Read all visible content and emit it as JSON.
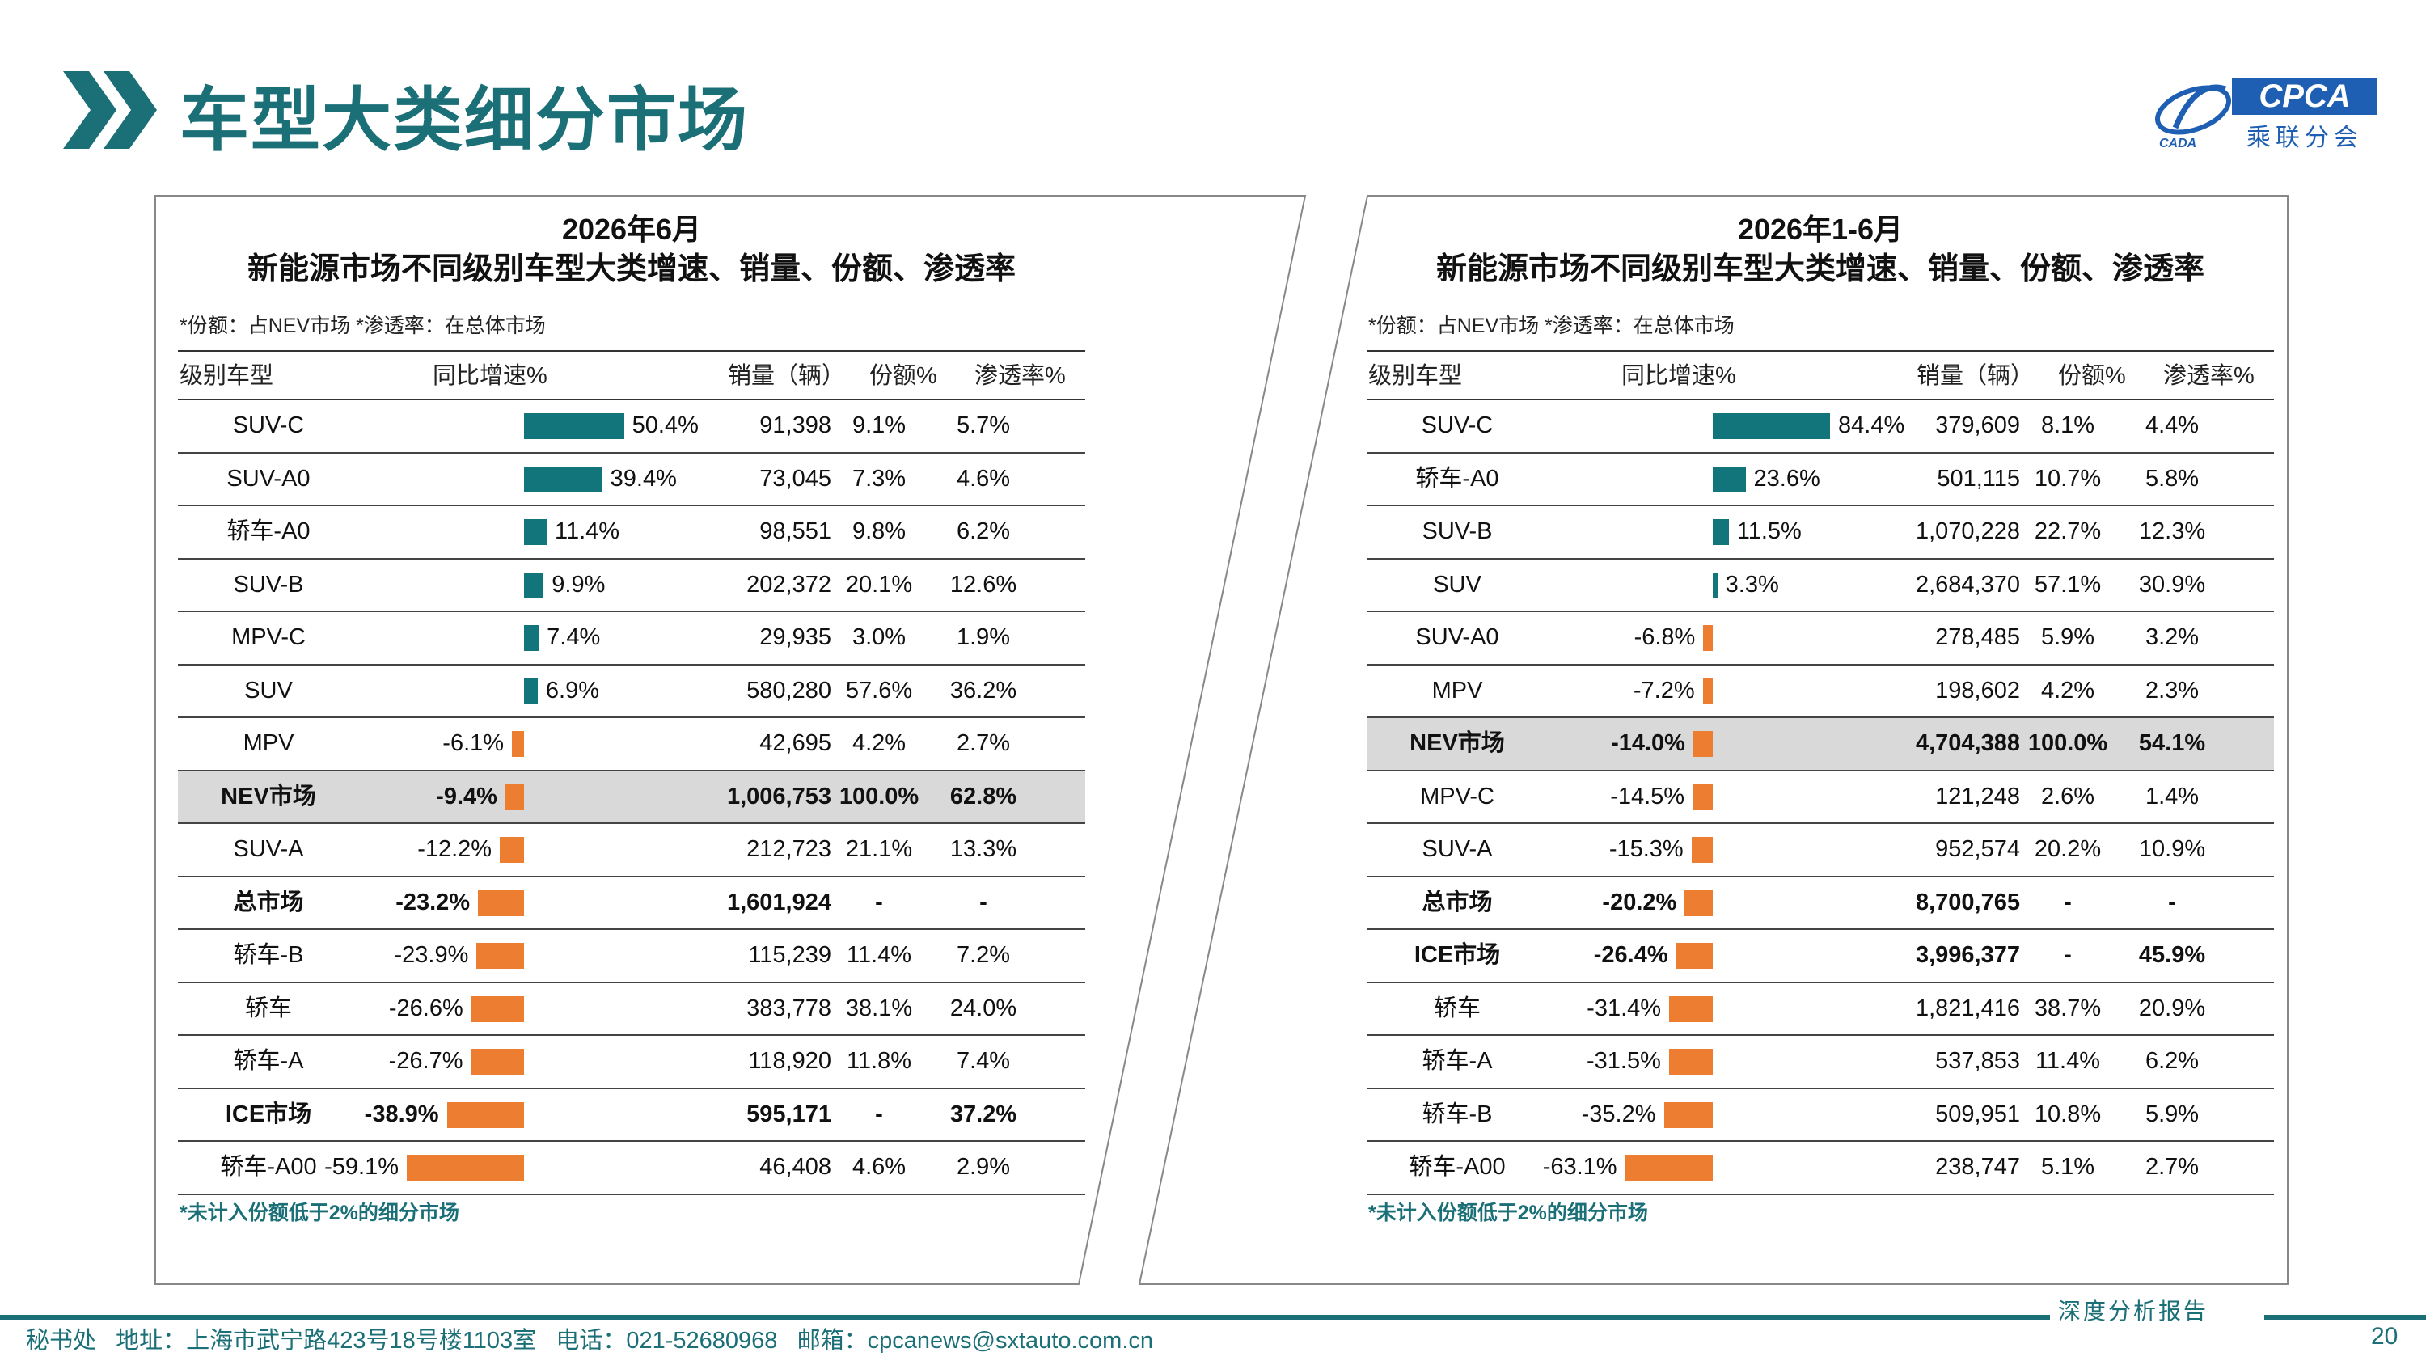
{
  "page": {
    "title": "车型大类细分市场",
    "page_number": "20"
  },
  "logo": {
    "name": "CPCA",
    "caption": "乘联分会",
    "sub": "CADA"
  },
  "footer": {
    "report_label": "深度分析报告",
    "info": "秘书处   地址：上海市武宁路423号18号楼1103室   电话：021-52680968   邮箱：cpcanews@sxtauto.com.cn"
  },
  "colors": {
    "teal": "#1b6f77",
    "positive_bar": "#13757c",
    "negative_bar": "#ed7d31",
    "highlight_row": "#d9d9d9"
  },
  "chart_data": [
    {
      "type": "table",
      "title": "2026年6月",
      "subtitle": "新能源市场不同级别车型大类增速、销量、份额、渗透率",
      "note": "*份额：占NEV市场   *渗透率：在总体市场",
      "footnote": "*未计入份额低于2%的细分市场",
      "headers": {
        "type": "级别车型",
        "growth": "同比增速%",
        "sales": "销量（辆）",
        "share": "份额%",
        "penetration": "渗透率%"
      },
      "rows": [
        {
          "type": "SUV-C",
          "growth": 50.4,
          "growth_label": "50.4%",
          "sales": "91,398",
          "share": "9.1%",
          "penetration": "5.7%"
        },
        {
          "type": "SUV-A0",
          "growth": 39.4,
          "growth_label": "39.4%",
          "sales": "73,045",
          "share": "7.3%",
          "penetration": "4.6%"
        },
        {
          "type": "轿车-A0",
          "growth": 11.4,
          "growth_label": "11.4%",
          "sales": "98,551",
          "share": "9.8%",
          "penetration": "6.2%"
        },
        {
          "type": "SUV-B",
          "growth": 9.9,
          "growth_label": "9.9%",
          "sales": "202,372",
          "share": "20.1%",
          "penetration": "12.6%"
        },
        {
          "type": "MPV-C",
          "growth": 7.4,
          "growth_label": "7.4%",
          "sales": "29,935",
          "share": "3.0%",
          "penetration": "1.9%"
        },
        {
          "type": "SUV",
          "growth": 6.9,
          "growth_label": "6.9%",
          "sales": "580,280",
          "share": "57.6%",
          "penetration": "36.2%"
        },
        {
          "type": "MPV",
          "growth": -6.1,
          "growth_label": "-6.1%",
          "sales": "42,695",
          "share": "4.2%",
          "penetration": "2.7%"
        },
        {
          "type": "NEV市场",
          "growth": -9.4,
          "growth_label": "-9.4%",
          "sales": "1,006,753",
          "share": "100.0%",
          "penetration": "62.8%",
          "bold": true,
          "highlight": true
        },
        {
          "type": "SUV-A",
          "growth": -12.2,
          "growth_label": "-12.2%",
          "sales": "212,723",
          "share": "21.1%",
          "penetration": "13.3%"
        },
        {
          "type": "总市场",
          "growth": -23.2,
          "growth_label": "-23.2%",
          "sales": "1,601,924",
          "share": "-",
          "penetration": "-",
          "bold": true
        },
        {
          "type": "轿车-B",
          "growth": -23.9,
          "growth_label": "-23.9%",
          "sales": "115,239",
          "share": "11.4%",
          "penetration": "7.2%"
        },
        {
          "type": "轿车",
          "growth": -26.6,
          "growth_label": "-26.6%",
          "sales": "383,778",
          "share": "38.1%",
          "penetration": "24.0%"
        },
        {
          "type": "轿车-A",
          "growth": -26.7,
          "growth_label": "-26.7%",
          "sales": "118,920",
          "share": "11.8%",
          "penetration": "7.4%"
        },
        {
          "type": "ICE市场",
          "growth": -38.9,
          "growth_label": "-38.9%",
          "sales": "595,171",
          "share": "-",
          "penetration": "37.2%",
          "bold": true
        },
        {
          "type": "轿车-A00",
          "growth": -59.1,
          "growth_label": "-59.1%",
          "sales": "46,408",
          "share": "4.6%",
          "penetration": "2.9%"
        }
      ]
    },
    {
      "type": "table",
      "title": "2026年1-6月",
      "subtitle": "新能源市场不同级别车型大类增速、销量、份额、渗透率",
      "note": "*份额：占NEV市场   *渗透率：在总体市场",
      "footnote": "*未计入份额低于2%的细分市场",
      "headers": {
        "type": "级别车型",
        "growth": "同比增速%",
        "sales": "销量（辆）",
        "share": "份额%",
        "penetration": "渗透率%"
      },
      "rows": [
        {
          "type": "SUV-C",
          "growth": 84.4,
          "growth_label": "84.4%",
          "sales": "379,609",
          "share": "8.1%",
          "penetration": "4.4%"
        },
        {
          "type": "轿车-A0",
          "growth": 23.6,
          "growth_label": "23.6%",
          "sales": "501,115",
          "share": "10.7%",
          "penetration": "5.8%"
        },
        {
          "type": "SUV-B",
          "growth": 11.5,
          "growth_label": "11.5%",
          "sales": "1,070,228",
          "share": "22.7%",
          "penetration": "12.3%"
        },
        {
          "type": "SUV",
          "growth": 3.3,
          "growth_label": "3.3%",
          "sales": "2,684,370",
          "share": "57.1%",
          "penetration": "30.9%"
        },
        {
          "type": "SUV-A0",
          "growth": -6.8,
          "growth_label": "-6.8%",
          "sales": "278,485",
          "share": "5.9%",
          "penetration": "3.2%"
        },
        {
          "type": "MPV",
          "growth": -7.2,
          "growth_label": "-7.2%",
          "sales": "198,602",
          "share": "4.2%",
          "penetration": "2.3%"
        },
        {
          "type": "NEV市场",
          "growth": -14.0,
          "growth_label": "-14.0%",
          "sales": "4,704,388",
          "share": "100.0%",
          "penetration": "54.1%",
          "bold": true,
          "highlight": true
        },
        {
          "type": "MPV-C",
          "growth": -14.5,
          "growth_label": "-14.5%",
          "sales": "121,248",
          "share": "2.6%",
          "penetration": "1.4%"
        },
        {
          "type": "SUV-A",
          "growth": -15.3,
          "growth_label": "-15.3%",
          "sales": "952,574",
          "share": "20.2%",
          "penetration": "10.9%"
        },
        {
          "type": "总市场",
          "growth": -20.2,
          "growth_label": "-20.2%",
          "sales": "8,700,765",
          "share": "-",
          "penetration": "-",
          "bold": true
        },
        {
          "type": "ICE市场",
          "growth": -26.4,
          "growth_label": "-26.4%",
          "sales": "3,996,377",
          "share": "-",
          "penetration": "45.9%",
          "bold": true
        },
        {
          "type": "轿车",
          "growth": -31.4,
          "growth_label": "-31.4%",
          "sales": "1,821,416",
          "share": "38.7%",
          "penetration": "20.9%"
        },
        {
          "type": "轿车-A",
          "growth": -31.5,
          "growth_label": "-31.5%",
          "sales": "537,853",
          "share": "11.4%",
          "penetration": "6.2%"
        },
        {
          "type": "轿车-B",
          "growth": -35.2,
          "growth_label": "-35.2%",
          "sales": "509,951",
          "share": "10.8%",
          "penetration": "5.9%"
        },
        {
          "type": "轿车-A00",
          "growth": -63.1,
          "growth_label": "-63.1%",
          "sales": "238,747",
          "share": "5.1%",
          "penetration": "2.7%"
        }
      ]
    }
  ]
}
